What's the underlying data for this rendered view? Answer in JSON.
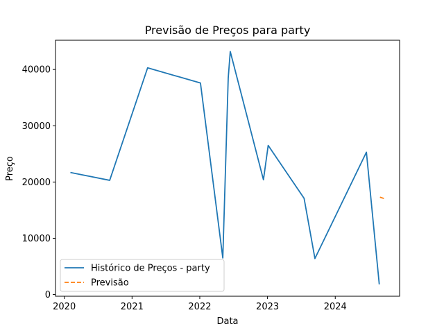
{
  "chart_data": {
    "type": "line",
    "title": "Previsão de Preços para party",
    "xlabel": "Data",
    "ylabel": "Preço",
    "xlim": [
      2019.87,
      2024.95
    ],
    "ylim": [
      -300,
      45200
    ],
    "xticks": [
      2020,
      2021,
      2022,
      2023,
      2024
    ],
    "yticks": [
      0,
      10000,
      20000,
      30000,
      40000
    ],
    "grid": false,
    "legend_position": "lower-left",
    "series": [
      {
        "name": "Histórico de Preços - party",
        "color": "#1f77b4",
        "style": "solid",
        "x": [
          2020.09,
          2020.67,
          2021.23,
          2022.01,
          2022.34,
          2022.42,
          2022.45,
          2022.94,
          2023.01,
          2023.54,
          2023.7,
          2024.46,
          2024.65
        ],
        "y": [
          21700,
          20300,
          40300,
          37600,
          6500,
          38500,
          43200,
          20400,
          26500,
          17100,
          6400,
          25300,
          1800
        ]
      },
      {
        "name": "Previsão",
        "color": "#ff7f0e",
        "style": "dashed",
        "x": [
          2024.66,
          2024.74
        ],
        "y": [
          17300,
          17000
        ]
      }
    ]
  }
}
